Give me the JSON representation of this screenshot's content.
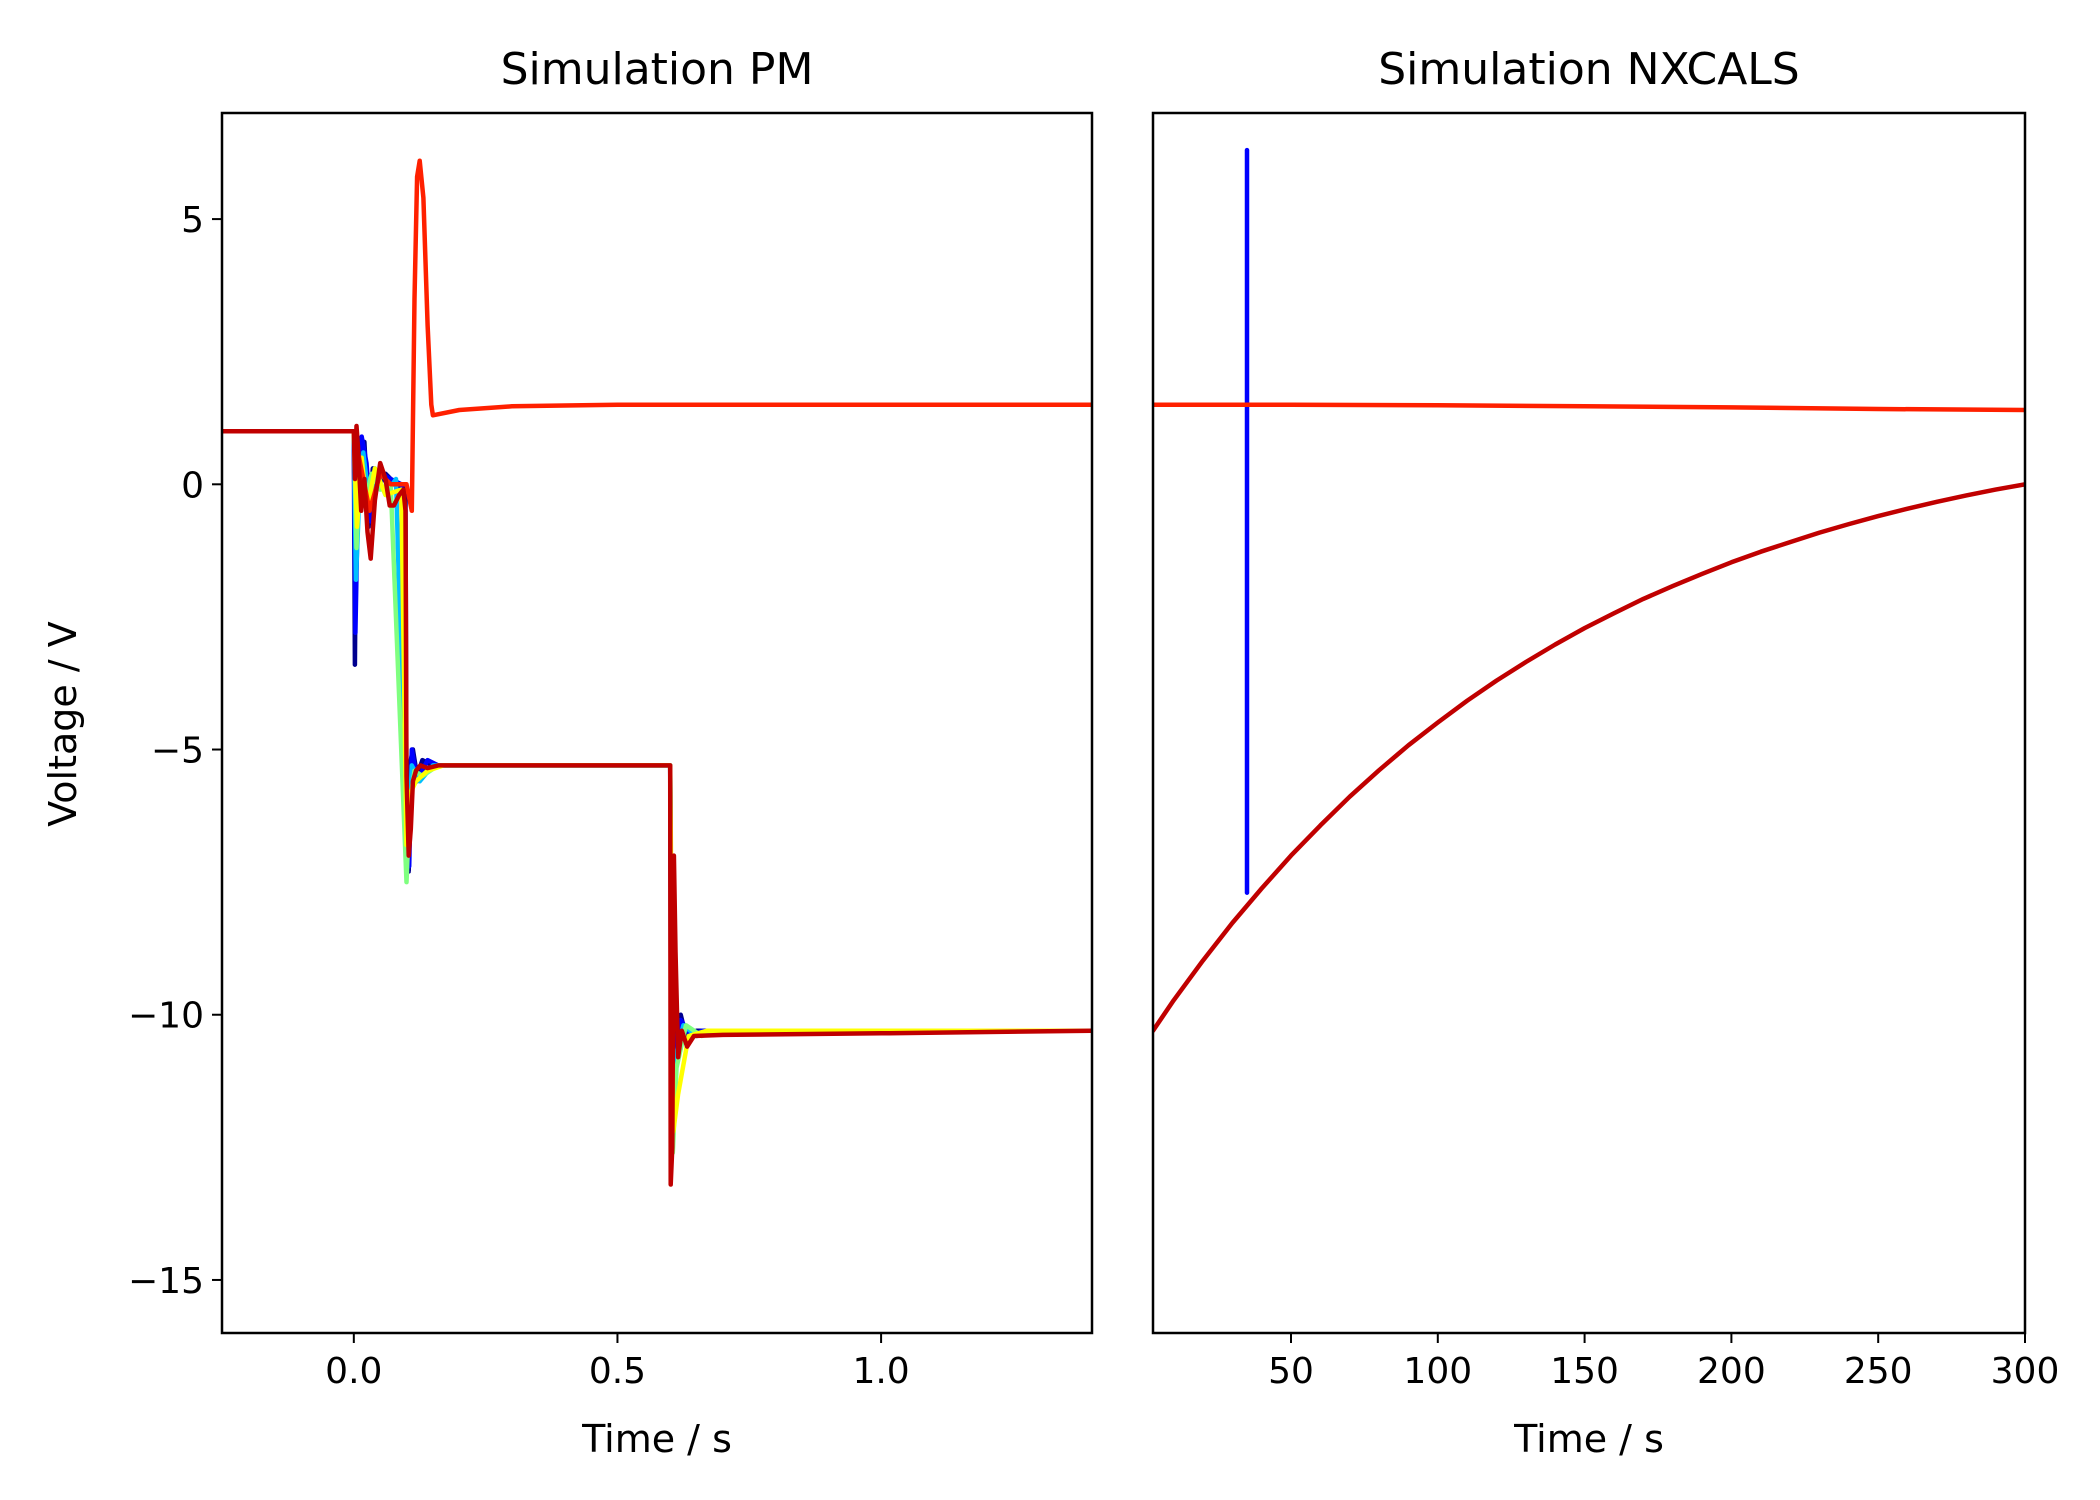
{
  "chart_data": [
    {
      "type": "line",
      "title": "Simulation PM",
      "xlabel": "Time / s",
      "ylabel": "Voltage / V",
      "xlim": [
        -0.25,
        1.4
      ],
      "ylim": [
        -16,
        7
      ],
      "xticks": [
        0.0,
        0.5,
        1.0
      ],
      "xtick_labels": [
        "0.0",
        "0.5",
        "1.0"
      ],
      "yticks": [
        -15,
        -10,
        -5,
        0,
        5
      ],
      "ytick_labels": [
        "−15",
        "−10",
        "−5",
        "0",
        "5"
      ],
      "grid": false,
      "series": [
        {
          "color": "#00008f",
          "points": [
            [
              -0.25,
              1
            ],
            [
              0,
              1
            ],
            [
              0.002,
              -3.4
            ],
            [
              0.004,
              -1
            ],
            [
              0.01,
              0.6
            ],
            [
              0.02,
              0.8
            ],
            [
              0.028,
              -0.8
            ],
            [
              0.036,
              0.3
            ],
            [
              0.044,
              -0.1
            ],
            [
              0.06,
              0.2
            ],
            [
              0.08,
              0.0
            ],
            [
              0.098,
              -0.1
            ],
            [
              0.1,
              -6.3
            ],
            [
              0.104,
              -7.3
            ],
            [
              0.108,
              -5.2
            ],
            [
              0.112,
              -5.0
            ],
            [
              0.12,
              -5.5
            ],
            [
              0.13,
              -5.2
            ],
            [
              0.15,
              -5.3
            ],
            [
              0.6,
              -5.3
            ],
            [
              0.602,
              -12.3
            ],
            [
              0.606,
              -10.5
            ],
            [
              0.62,
              -10.0
            ],
            [
              0.63,
              -10.4
            ],
            [
              0.65,
              -10.3
            ],
            [
              1.4,
              -10.3
            ]
          ]
        },
        {
          "color": "#0000ff",
          "points": [
            [
              -0.25,
              1
            ],
            [
              0,
              1
            ],
            [
              0.003,
              -2.8
            ],
            [
              0.008,
              -0.2
            ],
            [
              0.015,
              0.9
            ],
            [
              0.024,
              0.4
            ],
            [
              0.032,
              -0.7
            ],
            [
              0.04,
              0.1
            ],
            [
              0.052,
              0.2
            ],
            [
              0.07,
              0.1
            ],
            [
              0.09,
              0.0
            ],
            [
              0.1,
              -6.5
            ],
            [
              0.105,
              -7.2
            ],
            [
              0.11,
              -5.0
            ],
            [
              0.12,
              -5.6
            ],
            [
              0.14,
              -5.2
            ],
            [
              0.16,
              -5.3
            ],
            [
              0.6,
              -5.3
            ],
            [
              0.603,
              -12.0
            ],
            [
              0.608,
              -10.6
            ],
            [
              0.62,
              -10.1
            ],
            [
              0.64,
              -10.4
            ],
            [
              0.66,
              -10.3
            ],
            [
              1.4,
              -10.3
            ]
          ]
        },
        {
          "color": "#00bfff",
          "points": [
            [
              -0.25,
              1
            ],
            [
              0,
              1
            ],
            [
              0.004,
              -1.8
            ],
            [
              0.01,
              -0.3
            ],
            [
              0.018,
              0.6
            ],
            [
              0.03,
              -0.4
            ],
            [
              0.04,
              0.3
            ],
            [
              0.06,
              -0.2
            ],
            [
              0.08,
              0.1
            ],
            [
              0.1,
              -7.0
            ],
            [
              0.104,
              -6.8
            ],
            [
              0.11,
              -5.3
            ],
            [
              0.125,
              -5.6
            ],
            [
              0.15,
              -5.3
            ],
            [
              0.6,
              -5.3
            ],
            [
              0.604,
              -12.4
            ],
            [
              0.61,
              -10.8
            ],
            [
              0.625,
              -10.2
            ],
            [
              0.65,
              -10.4
            ],
            [
              0.7,
              -10.3
            ],
            [
              1.4,
              -10.3
            ]
          ]
        },
        {
          "color": "#7fff7f",
          "points": [
            [
              -0.25,
              1
            ],
            [
              0,
              1
            ],
            [
              0.005,
              -1.2
            ],
            [
              0.012,
              0.4
            ],
            [
              0.022,
              -0.3
            ],
            [
              0.034,
              0.2
            ],
            [
              0.05,
              -0.1
            ],
            [
              0.07,
              0.0
            ],
            [
              0.1,
              -7.5
            ],
            [
              0.106,
              -6.0
            ],
            [
              0.115,
              -5.4
            ],
            [
              0.13,
              -5.5
            ],
            [
              0.16,
              -5.3
            ],
            [
              0.6,
              -5.3
            ],
            [
              0.605,
              -12.6
            ],
            [
              0.612,
              -11.0
            ],
            [
              0.63,
              -10.2
            ],
            [
              0.66,
              -10.4
            ],
            [
              0.7,
              -10.3
            ],
            [
              1.4,
              -10.3
            ]
          ]
        },
        {
          "color": "#ffff00",
          "points": [
            [
              -0.25,
              1
            ],
            [
              0,
              1
            ],
            [
              0.006,
              -0.8
            ],
            [
              0.015,
              0.5
            ],
            [
              0.025,
              -0.5
            ],
            [
              0.04,
              0.3
            ],
            [
              0.06,
              -0.2
            ],
            [
              0.09,
              -0.1
            ],
            [
              0.1,
              -6.8
            ],
            [
              0.108,
              -5.8
            ],
            [
              0.118,
              -5.6
            ],
            [
              0.14,
              -5.4
            ],
            [
              0.17,
              -5.3
            ],
            [
              0.6,
              -5.3
            ],
            [
              0.606,
              -12.2
            ],
            [
              0.615,
              -11.5
            ],
            [
              0.635,
              -10.4
            ],
            [
              0.67,
              -10.3
            ],
            [
              1.4,
              -10.3
            ]
          ]
        },
        {
          "color": "#ff2000",
          "points": [
            [
              -0.25,
              1
            ],
            [
              0,
              1
            ],
            [
              0.01,
              0.5
            ],
            [
              0.03,
              -0.5
            ],
            [
              0.05,
              0.2
            ],
            [
              0.07,
              0.0
            ],
            [
              0.1,
              0.0
            ],
            [
              0.11,
              -0.5
            ],
            [
              0.115,
              3.5
            ],
            [
              0.12,
              5.8
            ],
            [
              0.125,
              6.1
            ],
            [
              0.132,
              5.4
            ],
            [
              0.14,
              3.0
            ],
            [
              0.147,
              1.5
            ],
            [
              0.15,
              1.3
            ],
            [
              0.2,
              1.4
            ],
            [
              0.3,
              1.47
            ],
            [
              0.5,
              1.5
            ],
            [
              1.4,
              1.5
            ]
          ]
        },
        {
          "color": "#c00000",
          "points": [
            [
              -0.25,
              1
            ],
            [
              0,
              1
            ],
            [
              0.002,
              0.1
            ],
            [
              0.005,
              1.1
            ],
            [
              0.008,
              0.7
            ],
            [
              0.014,
              -0.5
            ],
            [
              0.02,
              0.1
            ],
            [
              0.026,
              -0.9
            ],
            [
              0.032,
              -1.4
            ],
            [
              0.04,
              -0.3
            ],
            [
              0.05,
              0.4
            ],
            [
              0.06,
              0.1
            ],
            [
              0.068,
              -0.4
            ],
            [
              0.076,
              -0.4
            ],
            [
              0.086,
              -0.2
            ],
            [
              0.094,
              -0.1
            ],
            [
              0.098,
              -0.5
            ],
            [
              0.1,
              -5.5
            ],
            [
              0.104,
              -7.0
            ],
            [
              0.108,
              -6.5
            ],
            [
              0.112,
              -5.6
            ],
            [
              0.118,
              -5.4
            ],
            [
              0.126,
              -5.3
            ],
            [
              0.14,
              -5.35
            ],
            [
              0.16,
              -5.3
            ],
            [
              0.6,
              -5.3
            ],
            [
              0.601,
              -13.2
            ],
            [
              0.604,
              -12.5
            ],
            [
              0.607,
              -7.0
            ],
            [
              0.61,
              -8.8
            ],
            [
              0.615,
              -10.8
            ],
            [
              0.622,
              -10.3
            ],
            [
              0.632,
              -10.6
            ],
            [
              0.645,
              -10.4
            ],
            [
              0.7,
              -10.38
            ],
            [
              1.0,
              -10.35
            ],
            [
              1.4,
              -10.3
            ]
          ]
        }
      ]
    },
    {
      "type": "line",
      "title": "Simulation NXCALS",
      "xlabel": "Time / s",
      "ylabel": "",
      "xlim": [
        3,
        300
      ],
      "ylim": [
        -16,
        7
      ],
      "xticks": [
        50,
        100,
        150,
        200,
        250,
        300
      ],
      "xtick_labels": [
        "50",
        "100",
        "150",
        "200",
        "250",
        "300"
      ],
      "yticks": [],
      "ytick_labels": [],
      "grid": false,
      "series": [
        {
          "color": "#0000ff",
          "points": [
            [
              35,
              6.3
            ],
            [
              35,
              -7.7
            ]
          ]
        },
        {
          "color": "#ff2000",
          "points": [
            [
              3,
              1.5
            ],
            [
              50,
              1.5
            ],
            [
              100,
              1.49
            ],
            [
              150,
              1.47
            ],
            [
              200,
              1.45
            ],
            [
              250,
              1.42
            ],
            [
              300,
              1.4
            ]
          ]
        },
        {
          "color": "#c00000",
          "points": [
            [
              3,
              -10.3
            ],
            [
              10,
              -9.73
            ],
            [
              20,
              -8.98
            ],
            [
              30,
              -8.27
            ],
            [
              40,
              -7.62
            ],
            [
              50,
              -7.0
            ],
            [
              60,
              -6.43
            ],
            [
              70,
              -5.89
            ],
            [
              80,
              -5.39
            ],
            [
              90,
              -4.92
            ],
            [
              100,
              -4.49
            ],
            [
              110,
              -4.08
            ],
            [
              120,
              -3.7
            ],
            [
              130,
              -3.35
            ],
            [
              140,
              -3.02
            ],
            [
              150,
              -2.71
            ],
            [
              160,
              -2.43
            ],
            [
              170,
              -2.16
            ],
            [
              180,
              -1.92
            ],
            [
              190,
              -1.69
            ],
            [
              200,
              -1.47
            ],
            [
              210,
              -1.27
            ],
            [
              220,
              -1.09
            ],
            [
              230,
              -0.91
            ],
            [
              240,
              -0.75
            ],
            [
              250,
              -0.6
            ],
            [
              260,
              -0.46
            ],
            [
              270,
              -0.33
            ],
            [
              280,
              -0.21
            ],
            [
              290,
              -0.1
            ],
            [
              300,
              0.0
            ]
          ]
        }
      ]
    }
  ]
}
